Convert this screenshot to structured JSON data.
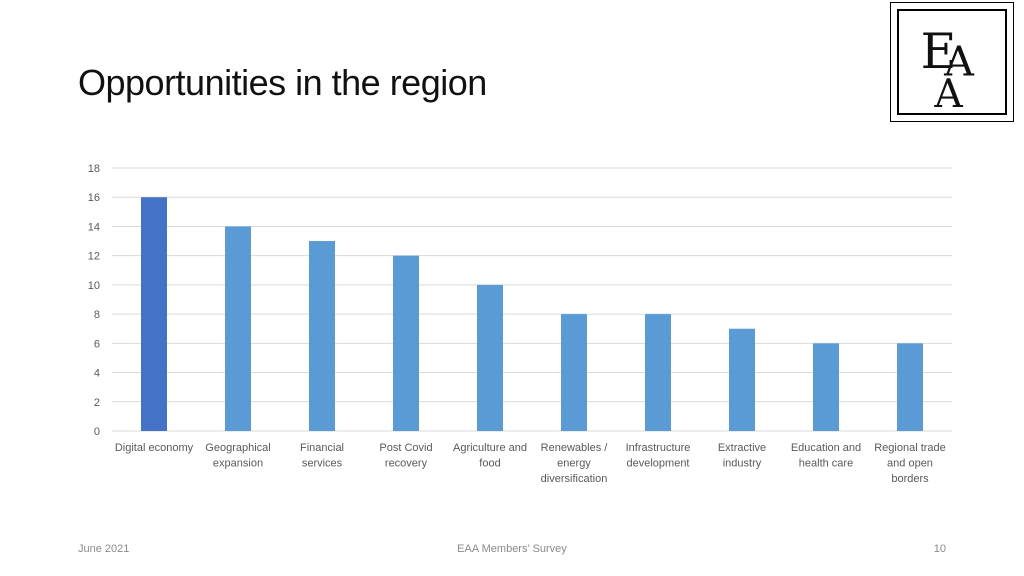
{
  "slide": {
    "title": "Opportunities in the region",
    "logo_text": "EAA",
    "footer_left": "June 2021",
    "footer_center": "EAA Members’ Survey",
    "footer_right": "10"
  },
  "colors": {
    "highlight_bar": "#4472C4",
    "bar": "#5B9BD5",
    "grid": "#d9d9d9",
    "tick_text": "#595959"
  },
  "chart_data": {
    "type": "bar",
    "title": "",
    "xlabel": "",
    "ylabel": "",
    "ylim": [
      0,
      18
    ],
    "yticks": [
      0,
      2,
      4,
      6,
      8,
      10,
      12,
      14,
      16,
      18
    ],
    "grid": true,
    "categories": [
      [
        "Digital economy"
      ],
      [
        "Geographical",
        "expansion"
      ],
      [
        "Financial",
        "services"
      ],
      [
        "Post Covid",
        "recovery"
      ],
      [
        "Agriculture and",
        "food"
      ],
      [
        "Renewables /",
        "energy",
        "diversification"
      ],
      [
        "Infrastructure",
        "development"
      ],
      [
        "Extractive",
        "industry"
      ],
      [
        "Education and",
        "health care"
      ],
      [
        "Regional trade",
        "and open",
        "borders"
      ]
    ],
    "values": [
      16,
      14,
      13,
      12,
      10,
      8,
      8,
      7,
      6,
      6
    ],
    "highlighted_index": 0
  }
}
